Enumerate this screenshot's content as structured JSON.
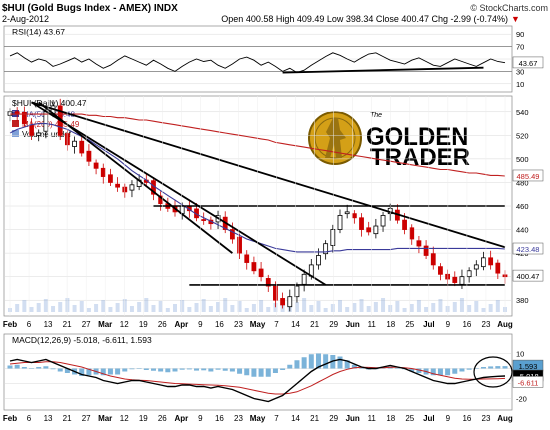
{
  "header": {
    "title": "$HUI (Gold Bugs Index - AMEX) INDX",
    "date": "2-Aug-2012",
    "quote": "Open 400.58 High 409.49 Low 398.34 Close 400.47 Chg -2.99 (-0.74%)",
    "quote_arrow": "▼",
    "watermark": "© StockCharts.com"
  },
  "logo": {
    "small_text": "The",
    "line1": "GOLDEN",
    "line2": "TRADER"
  },
  "colors": {
    "price_up": "#000000",
    "price_down": "#cc0000",
    "ma50": "#3a3a9a",
    "ma200": "#c02020",
    "volume": "#7fa0d8",
    "macd_line": "#000000",
    "macd_signal": "#c02020",
    "histogram": "#5aa0d0",
    "grid": "#d8d8d8",
    "gold": "#d4a017"
  },
  "chart_data": [
    {
      "type": "line",
      "title": "RSI(14) 43.67",
      "legend": "RSI(14) 43.67",
      "yticks": [
        "90",
        "70",
        "50",
        "30",
        "10"
      ],
      "ylim": [
        0,
        100
      ],
      "reference_lines": [
        70,
        30
      ],
      "last_value_label": "43.67",
      "series": [
        {
          "name": "RSI(14)",
          "values": [
            55,
            60,
            52,
            45,
            50,
            47,
            38,
            42,
            47,
            52,
            45,
            50,
            42,
            35,
            40,
            48,
            55,
            50,
            45,
            40,
            48,
            42,
            35,
            30,
            38,
            45,
            50,
            46,
            48,
            40,
            35,
            42,
            50,
            53,
            48,
            40,
            45,
            38,
            30,
            35,
            28,
            32,
            40,
            47,
            54,
            60,
            56,
            50,
            45,
            52,
            58,
            60,
            54,
            48,
            45,
            42,
            48,
            52,
            46,
            40,
            38,
            44,
            50,
            46,
            42,
            38,
            44,
            50,
            46,
            44
          ]
        }
      ]
    },
    {
      "type": "line",
      "title": "$HUI (Daily) 400.47",
      "legend": [
        "$HUI (Daily) 400.47",
        "MA(50) 423.48",
        "MA(200) 485.49",
        "Volume undef"
      ],
      "yticks": [
        "540",
        "520",
        "500",
        "480",
        "460",
        "440",
        "420",
        "400",
        "380"
      ],
      "ylim": [
        370,
        550
      ],
      "last_value_labels": [
        "485.49",
        "423.48",
        "400.47"
      ],
      "x_tick_labels": [
        "Feb",
        "6",
        "13",
        "21",
        "27",
        "Mar",
        "12",
        "19",
        "26",
        "Apr",
        "9",
        "16",
        "23",
        "May",
        "7",
        "14",
        "21",
        "29",
        "Jun",
        "11",
        "18",
        "25",
        "Jul",
        "9",
        "16",
        "23",
        "Aug"
      ],
      "series": [
        {
          "name": "$HUI (Daily)",
          "values": [
            540,
            538,
            530,
            520,
            522,
            540,
            545,
            520,
            512,
            515,
            505,
            498,
            492,
            485,
            480,
            476,
            472,
            478,
            482,
            480,
            470,
            462,
            458,
            455,
            460,
            456,
            450,
            448,
            445,
            452,
            440,
            432,
            420,
            412,
            405,
            400,
            392,
            380,
            376,
            383,
            392,
            402,
            410,
            418,
            428,
            440,
            452,
            455,
            450,
            440,
            438,
            443,
            452,
            458,
            448,
            440,
            432,
            426,
            418,
            410,
            402,
            398,
            395,
            400,
            405,
            410,
            416,
            410,
            403,
            400
          ]
        },
        {
          "name": "MA(50)",
          "values": [
            522,
            525,
            527,
            529,
            530,
            530,
            529,
            527,
            525,
            522,
            519,
            516,
            512,
            508,
            504,
            500,
            495,
            490,
            486,
            482,
            477,
            473,
            469,
            465,
            461,
            457,
            453,
            450,
            447,
            444,
            441,
            438,
            435,
            432,
            430,
            428,
            426,
            424,
            423,
            422,
            421,
            421,
            421,
            421,
            421,
            422,
            422,
            423,
            423,
            423,
            423,
            423,
            423,
            423,
            424,
            424,
            424,
            424,
            424,
            424,
            424,
            424,
            424,
            424,
            424,
            424,
            424,
            424,
            424,
            423.48
          ]
        },
        {
          "name": "MA(200)",
          "values": [
            538,
            538,
            538,
            538,
            538,
            538,
            538,
            538,
            538,
            538,
            538,
            537,
            537,
            536,
            536,
            535,
            535,
            534,
            533,
            533,
            532,
            531,
            530,
            529,
            528,
            527,
            526,
            525,
            524,
            523,
            522,
            521,
            520,
            519,
            518,
            517,
            516,
            514,
            513,
            512,
            511,
            510,
            509,
            508,
            507,
            506,
            505,
            504,
            503,
            502,
            501,
            500,
            499,
            498,
            497,
            496,
            495,
            494,
            493,
            492,
            491,
            491,
            490,
            489,
            488,
            488,
            487,
            486,
            486,
            485.49
          ]
        }
      ],
      "annotations": [
        {
          "type": "horizontal",
          "y": 460
        },
        {
          "type": "horizontal",
          "y": 393
        }
      ]
    },
    {
      "type": "line",
      "title": "MACD(12,26,9) -5.018, -6.611, 1.593",
      "legend": "MACD(12,26,9) -5.018, -6.611, 1.593",
      "yticks": [
        "10",
        "0",
        "-10",
        "-20"
      ],
      "ylim": [
        -25,
        15
      ],
      "last_value_labels": [
        "1.593",
        "-5.018",
        "-6.611"
      ],
      "x_tick_labels": [
        "Feb",
        "6",
        "13",
        "21",
        "27",
        "Mar",
        "12",
        "19",
        "26",
        "Apr",
        "9",
        "16",
        "23",
        "May",
        "7",
        "14",
        "21",
        "29",
        "Jun",
        "11",
        "18",
        "25",
        "Jul",
        "9",
        "16",
        "23",
        "Aug"
      ],
      "series": [
        {
          "name": "MACD",
          "values": [
            5,
            6,
            5,
            4,
            5,
            6,
            4,
            2,
            0,
            -2,
            -4,
            -5,
            -6,
            -8,
            -9,
            -10,
            -9,
            -8,
            -8,
            -9,
            -10,
            -11,
            -12,
            -12,
            -11,
            -11,
            -12,
            -12,
            -13,
            -12,
            -13,
            -14,
            -16,
            -18,
            -20,
            -21,
            -22,
            -20,
            -18,
            -14,
            -10,
            -6,
            -2,
            1,
            3,
            5,
            6,
            5,
            3,
            1,
            0,
            0,
            1,
            2,
            1,
            0,
            -2,
            -4,
            -6,
            -8,
            -9,
            -10,
            -10,
            -9,
            -8,
            -7,
            -6,
            -5.5,
            -5.2,
            -5.018
          ]
        },
        {
          "name": "Signal",
          "values": [
            3,
            3.5,
            4,
            4,
            4,
            4.5,
            4.5,
            4,
            3,
            2,
            1,
            -0.5,
            -2,
            -3.5,
            -5,
            -6,
            -7,
            -7.5,
            -7.8,
            -8,
            -8.5,
            -9,
            -9.5,
            -10,
            -10.2,
            -10.4,
            -10.6,
            -10.8,
            -11,
            -11.2,
            -11.5,
            -12,
            -12.5,
            -13.5,
            -14.5,
            -15.5,
            -16.5,
            -17,
            -17,
            -16.5,
            -15.5,
            -13.5,
            -11.5,
            -9,
            -6.5,
            -4,
            -2,
            -0.5,
            0.5,
            0.8,
            0.7,
            0.5,
            0.5,
            0.8,
            0.8,
            0.5,
            0,
            -1,
            -2,
            -3.5,
            -4.5,
            -5.5,
            -6.5,
            -7,
            -7.2,
            -7.2,
            -7,
            -6.9,
            -6.8,
            -6.611
          ]
        }
      ]
    }
  ]
}
